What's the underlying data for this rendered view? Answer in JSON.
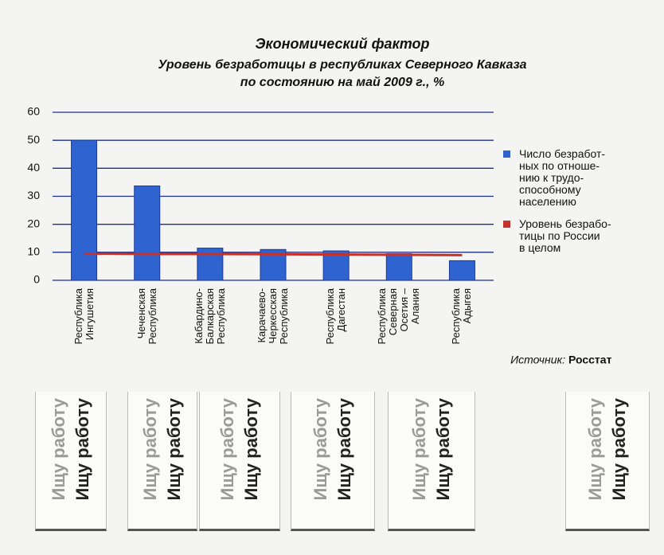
{
  "chart_data": {
    "type": "bar",
    "title": "Экономический фактор",
    "subtitle": "Уровень безработицы в республиках Северного Кавказа",
    "subtitle2": "по состоянию на май 2009 г., %",
    "categories": [
      "Республика\nИнгушетия",
      "Чеченская\nРеспублика",
      "Кабардино-\nБалкарская\nРеспублика",
      "Карачаево-\nЧеркесская\nРеспублика",
      "Республика\nДагестан",
      "Республика\nСеверная\nОсетия –\nАлания",
      "Республика\nАдыгея"
    ],
    "series": [
      {
        "name": "Число безработ-\nных по отноше-\nнию к трудо-\nспособному\nнаселению",
        "type": "bar",
        "color": "#2f64d0",
        "values": [
          50,
          33.7,
          11.5,
          11,
          10.5,
          9.5,
          7
        ]
      },
      {
        "name": "Уровень безрабо-\nтицы по России\nв целом",
        "type": "line",
        "color": "#c8302a",
        "values": [
          9.5,
          9.4,
          9.4,
          9.3,
          9.2,
          9.1,
          9
        ]
      }
    ],
    "ylim": [
      0,
      60
    ],
    "yticks": [
      0,
      10,
      20,
      30,
      40,
      50,
      60
    ],
    "grid": true,
    "source_label": "Источник:",
    "source": "Росстат",
    "tear_off_tabs": [
      [
        "Ищу работу",
        "Ищу работу"
      ],
      [
        "Ищу работу",
        "Ищу работу"
      ],
      [
        "Ищу работу",
        "Ищу работу"
      ],
      [
        "Ищу работу",
        "Ищу работу"
      ],
      [
        "Ищу работу",
        "Ищу работу"
      ],
      [
        "Ищу работу",
        "Ищу работу"
      ]
    ]
  }
}
